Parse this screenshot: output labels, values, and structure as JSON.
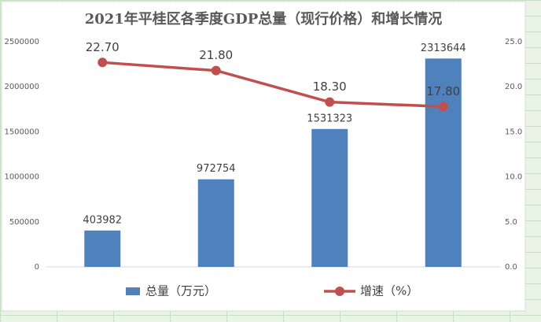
{
  "chart_data": {
    "type": "bar",
    "title": "2021年平桂区各季度GDP总量（现行价格）和增长情况",
    "categories": [
      null,
      null,
      null,
      null
    ],
    "series": [
      {
        "name": "总量（万元）",
        "color": "#4f81bd",
        "values": [
          403982,
          972754,
          1531323,
          2313644
        ]
      },
      {
        "name": "增速（%）",
        "color": "#c0504d",
        "type": "line",
        "axis": "y2",
        "values": [
          22.7,
          21.8,
          18.3,
          17.8
        ],
        "value_labels": [
          "22.70",
          "21.80",
          "18.30",
          "17.80"
        ]
      }
    ],
    "ylim": [
      0,
      2500000
    ],
    "yticks": [
      0,
      500000,
      1000000,
      1500000,
      2000000,
      2500000
    ],
    "y2lim": [
      0,
      25
    ],
    "y2ticks": [
      {
        "value": 0,
        "label": "0.0"
      },
      {
        "value": 5,
        "label": "5.0"
      },
      {
        "value": 10,
        "label": "10.0"
      },
      {
        "value": 15,
        "label": "15.0"
      },
      {
        "value": 20,
        "label": "20.0"
      },
      {
        "value": 25,
        "label": "25.0"
      }
    ],
    "grid": false,
    "legend": "bottom"
  }
}
